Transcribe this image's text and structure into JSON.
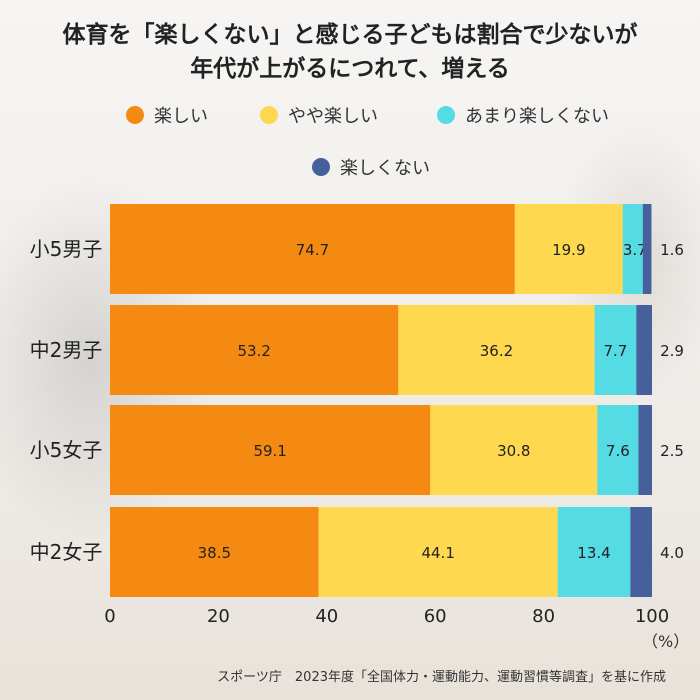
{
  "title_line1": "体育を「楽しくない」と感じる子どもは割合で少ないが",
  "title_line2": "年代が上がるにつれて、増える",
  "source": "スポーツ庁　2023年度「全国体力・運動能力、運動習慣等調査」を基に作成",
  "unit": "（%）",
  "chart_data": {
    "type": "bar",
    "orientation": "horizontal",
    "stacked": true,
    "categories": [
      "小5男子",
      "中2男子",
      "小5女子",
      "中2女子"
    ],
    "series": [
      {
        "name": "楽しい",
        "color": "#f58a13",
        "values": [
          74.7,
          53.2,
          59.1,
          38.5
        ]
      },
      {
        "name": "やや楽しい",
        "color": "#fed84f",
        "values": [
          19.9,
          36.2,
          30.8,
          44.1
        ]
      },
      {
        "name": "あまり楽しくない",
        "color": "#55dbe3",
        "values": [
          3.7,
          7.7,
          7.6,
          13.4
        ]
      },
      {
        "name": "楽しくない",
        "color": "#46609c",
        "values": [
          1.6,
          2.9,
          2.5,
          4.0
        ]
      }
    ],
    "value_labels": [
      [
        "74.7",
        "19.9",
        "3.7",
        "1.6"
      ],
      [
        "53.2",
        "36.2",
        "7.7",
        "2.9"
      ],
      [
        "59.1",
        "30.8",
        "7.6",
        "2.5"
      ],
      [
        "38.5",
        "44.1",
        "13.4",
        "4.0"
      ]
    ],
    "xlim": [
      0,
      100
    ],
    "xticks": [
      "0",
      "20",
      "40",
      "60",
      "80",
      "100"
    ],
    "legend_position": "top"
  }
}
